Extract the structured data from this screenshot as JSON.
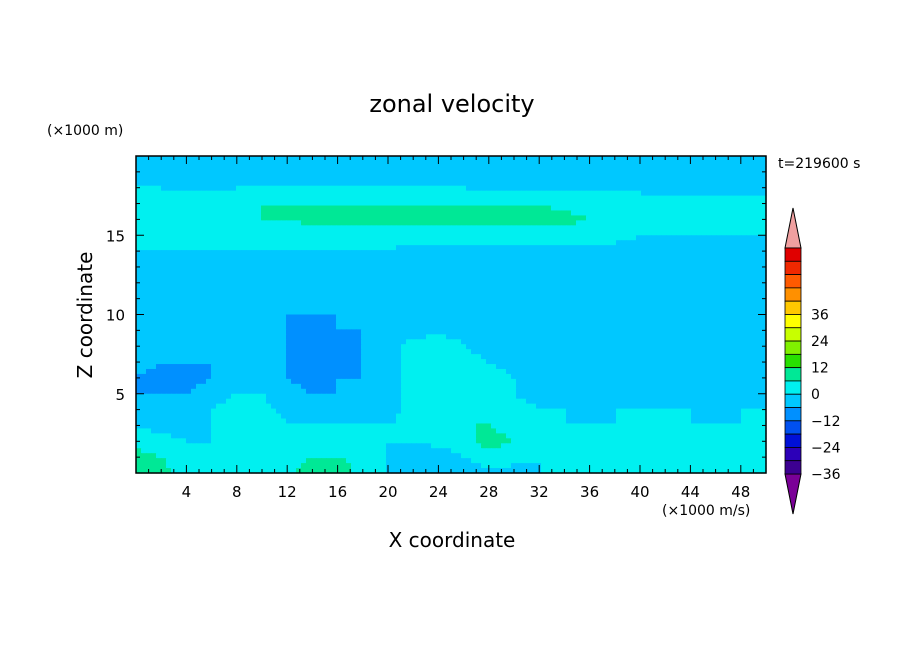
{
  "chart_data": {
    "type": "heatmap",
    "title": "zonal velocity",
    "xlabel": "X coordinate",
    "ylabel": "Z coordinate",
    "x_unit": "(×1000 m/s)",
    "y_unit": "(×1000 m)",
    "time_label": "t=219600 s",
    "xlim": [
      0,
      50
    ],
    "ylim": [
      0,
      20
    ],
    "x_ticks": [
      "4",
      "8",
      "12",
      "16",
      "20",
      "24",
      "28",
      "32",
      "36",
      "40",
      "44",
      "48"
    ],
    "y_ticks": [
      "5",
      "10",
      "15"
    ],
    "colorbar": {
      "tick_labels": [
        "36",
        "24",
        "12",
        "0",
        "−12",
        "−24",
        "−36"
      ],
      "min": -42,
      "max": 42,
      "level_step": 6,
      "colors": [
        "#7a0097",
        "#3c0091",
        "#2c00b8",
        "#0010d8",
        "#0050f0",
        "#0090ff",
        "#00c8ff",
        "#00f0f0",
        "#00e896",
        "#28e000",
        "#80f000",
        "#c8ff00",
        "#ffff00",
        "#ffc800",
        "#ff9000",
        "#ff5a00",
        "#f02800",
        "#e00000",
        "#f0a0a0"
      ]
    },
    "z_grid": {
      "x": [
        0,
        2,
        4,
        6,
        8,
        10,
        12,
        14,
        16,
        18,
        20,
        22,
        24,
        26,
        28,
        30,
        32,
        34,
        36,
        38,
        40,
        42,
        44,
        46,
        48,
        50
      ],
      "y": [
        0,
        1,
        2,
        3,
        4,
        5,
        6,
        7,
        8,
        9,
        10,
        11,
        12,
        13,
        14,
        15,
        16,
        17,
        18,
        19,
        20
      ],
      "values": [
        [
          8,
          8,
          2,
          0,
          0,
          2,
          4,
          10,
          10,
          4,
          0,
          -2,
          -6,
          -4,
          -2,
          -2,
          0,
          2,
          2,
          2,
          0,
          0,
          0,
          2,
          0,
          4
        ],
        [
          8,
          6,
          2,
          0,
          2,
          6,
          4,
          6,
          6,
          4,
          0,
          -2,
          -4,
          0,
          4,
          2,
          0,
          0,
          0,
          0,
          2,
          0,
          0,
          0,
          2,
          4
        ],
        [
          4,
          2,
          0,
          0,
          4,
          6,
          2,
          2,
          2,
          2,
          0,
          0,
          2,
          4,
          8,
          6,
          2,
          0,
          0,
          0,
          4,
          6,
          2,
          0,
          0,
          0
        ],
        [
          0,
          -2,
          -4,
          0,
          6,
          4,
          0,
          0,
          0,
          0,
          0,
          2,
          4,
          6,
          6,
          4,
          2,
          0,
          0,
          0,
          2,
          2,
          0,
          0,
          0,
          0
        ],
        [
          -4,
          -6,
          -6,
          0,
          4,
          2,
          -2,
          -4,
          -4,
          -4,
          -2,
          2,
          4,
          6,
          4,
          2,
          0,
          0,
          -2,
          0,
          0,
          0,
          0,
          -2,
          0,
          0
        ],
        [
          -6,
          -6,
          -6,
          -4,
          0,
          0,
          -4,
          -6,
          -6,
          -6,
          -2,
          2,
          4,
          6,
          2,
          0,
          -2,
          -2,
          -2,
          -2,
          -2,
          -2,
          -2,
          -2,
          -2,
          -2
        ],
        [
          -6,
          -8,
          -8,
          -6,
          -4,
          -4,
          -6,
          -8,
          -6,
          -6,
          -2,
          2,
          6,
          6,
          2,
          0,
          -2,
          -4,
          -4,
          -4,
          -4,
          -4,
          -4,
          -4,
          -4,
          -4
        ],
        [
          -4,
          -6,
          -6,
          -6,
          -6,
          -6,
          -6,
          -8,
          -8,
          -6,
          -2,
          2,
          4,
          2,
          0,
          -2,
          -4,
          -4,
          -4,
          -4,
          -4,
          -4,
          -4,
          -4,
          -4,
          -4
        ],
        [
          -4,
          -6,
          -6,
          -6,
          -6,
          -6,
          -6,
          -8,
          -8,
          -6,
          -2,
          2,
          4,
          0,
          -2,
          -4,
          -4,
          -4,
          -4,
          -4,
          -2,
          -4,
          -4,
          -4,
          -4,
          -4
        ],
        [
          -4,
          -4,
          -6,
          -6,
          -6,
          -6,
          -6,
          -8,
          -6,
          -6,
          -4,
          -2,
          -2,
          -2,
          -4,
          -4,
          -6,
          -4,
          -4,
          -4,
          -4,
          -4,
          -4,
          -4,
          -4,
          -4
        ],
        [
          -2,
          -4,
          -4,
          -4,
          -4,
          -4,
          -6,
          -6,
          -6,
          -6,
          -6,
          -6,
          -6,
          -6,
          -6,
          -6,
          -6,
          -6,
          -6,
          -6,
          -4,
          -4,
          -4,
          -4,
          -4,
          -4
        ],
        [
          -2,
          0,
          0,
          0,
          -2,
          -4,
          -4,
          -6,
          -6,
          -6,
          -6,
          -6,
          -6,
          -6,
          -6,
          -6,
          -6,
          -6,
          -6,
          -4,
          -4,
          -2,
          -2,
          -2,
          -2,
          -2
        ],
        [
          -2,
          -2,
          -4,
          -4,
          -4,
          -4,
          -4,
          -4,
          -4,
          -4,
          -4,
          -4,
          -4,
          -4,
          -4,
          -4,
          -4,
          -4,
          -4,
          -4,
          -4,
          -4,
          -4,
          -2,
          -2,
          -2
        ],
        [
          -2,
          -2,
          -2,
          -2,
          -2,
          -2,
          -2,
          -2,
          -2,
          -2,
          -4,
          -4,
          -4,
          -4,
          -4,
          -4,
          -4,
          -4,
          -4,
          -2,
          -2,
          -2,
          -2,
          -2,
          -2,
          -2
        ],
        [
          0,
          0,
          0,
          0,
          0,
          0,
          0,
          0,
          0,
          0,
          0,
          -2,
          -2,
          -2,
          -2,
          -2,
          -2,
          -2,
          -2,
          -2,
          -2,
          -2,
          -2,
          -2,
          -2,
          -2
        ],
        [
          2,
          2,
          2,
          2,
          2,
          2,
          2,
          2,
          2,
          2,
          2,
          2,
          2,
          2,
          2,
          2,
          2,
          2,
          2,
          2,
          0,
          0,
          0,
          0,
          0,
          0
        ],
        [
          2,
          4,
          4,
          6,
          6,
          6,
          6,
          8,
          8,
          8,
          8,
          8,
          8,
          8,
          8,
          8,
          8,
          8,
          6,
          6,
          4,
          2,
          2,
          2,
          2,
          2
        ],
        [
          2,
          2,
          4,
          4,
          4,
          6,
          6,
          6,
          6,
          6,
          6,
          6,
          6,
          6,
          6,
          6,
          6,
          4,
          4,
          4,
          4,
          2,
          2,
          2,
          2,
          2
        ],
        [
          0,
          0,
          -2,
          -2,
          0,
          0,
          0,
          0,
          0,
          0,
          0,
          0,
          0,
          0,
          -2,
          -2,
          -2,
          -2,
          -2,
          -2,
          -2,
          -2,
          -2,
          -2,
          -2,
          -2
        ],
        [
          -4,
          -4,
          -4,
          -2,
          -2,
          -2,
          -4,
          -4,
          -4,
          -4,
          -4,
          -4,
          -4,
          -4,
          -4,
          -4,
          -4,
          -4,
          -4,
          -4,
          -4,
          -4,
          -4,
          -4,
          -4,
          -4
        ],
        [
          -4,
          -4,
          -4,
          -4,
          -4,
          -4,
          -4,
          -4,
          -4,
          -4,
          -4,
          -4,
          -4,
          -4,
          -4,
          -4,
          -4,
          -4,
          -4,
          -4,
          -4,
          -4,
          -4,
          -4,
          -4,
          -4
        ]
      ]
    }
  }
}
